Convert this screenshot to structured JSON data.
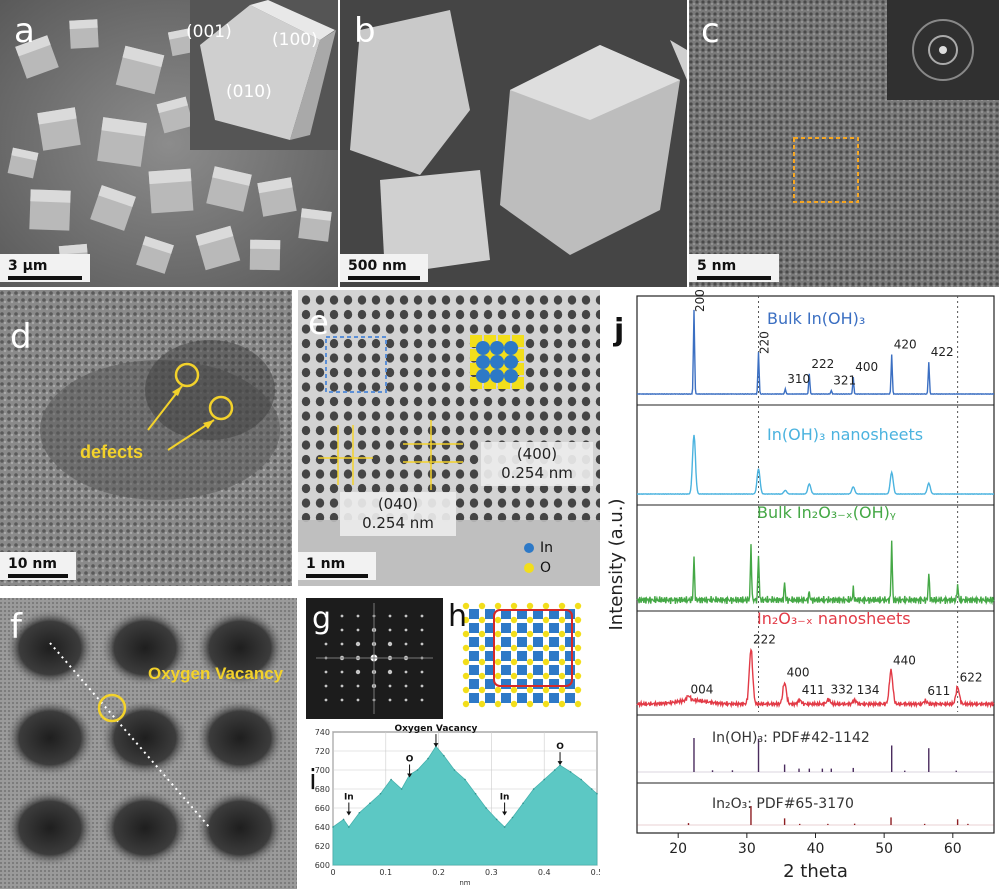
{
  "panels": {
    "a": {
      "label": "a",
      "scale": "3 μm",
      "facets": [
        "(001)",
        "(100)",
        "(010)"
      ]
    },
    "b": {
      "label": "b",
      "scale": "500 nm"
    },
    "c": {
      "label": "c",
      "scale": "5 nm"
    },
    "d": {
      "label": "d",
      "scale": "10 nm",
      "annotation": "defects"
    },
    "e": {
      "label": "e",
      "scale": "1 nm",
      "spacing_040": {
        "plane": "(040)",
        "d": "0.254 nm"
      },
      "spacing_400": {
        "plane": "(400)",
        "d": "0.254 nm"
      },
      "legend": [
        {
          "name": "In",
          "color": "#2d79c7"
        },
        {
          "name": "O",
          "color": "#f2de1b"
        }
      ]
    },
    "f": {
      "label": "f",
      "annotation": "Oxygen Vacancy"
    },
    "g": {
      "label": "g"
    },
    "h": {
      "label": "h"
    },
    "i": {
      "label": "i",
      "xlabel": "nm",
      "yticks": [
        600,
        620,
        640,
        660,
        680,
        700,
        720,
        740
      ],
      "xticks": [
        0,
        0.1,
        0.2,
        0.3,
        0.4,
        0.5
      ],
      "annotations": [
        {
          "text": "In",
          "x": 0.03,
          "y": 650
        },
        {
          "text": "O",
          "x": 0.145,
          "y": 690
        },
        {
          "text": "Oxygen Vacancy",
          "x": 0.195,
          "y": 722
        },
        {
          "text": "In",
          "x": 0.325,
          "y": 650
        },
        {
          "text": "O",
          "x": 0.43,
          "y": 703
        }
      ]
    },
    "j": {
      "label": "j",
      "ylabel": "Intensity (a.u.)",
      "xlabel": "2 theta",
      "xticks": [
        20,
        30,
        40,
        50,
        60
      ]
    }
  },
  "chart_data": [
    {
      "type": "area",
      "panel": "i",
      "xlabel": "nm",
      "ylim": [
        600,
        740
      ],
      "xlim": [
        0,
        0.5
      ],
      "color": "#5cc8c4",
      "x": [
        0.0,
        0.02,
        0.03,
        0.05,
        0.07,
        0.09,
        0.11,
        0.13,
        0.145,
        0.16,
        0.18,
        0.195,
        0.21,
        0.23,
        0.25,
        0.27,
        0.29,
        0.31,
        0.325,
        0.34,
        0.36,
        0.38,
        0.4,
        0.42,
        0.43,
        0.45,
        0.47,
        0.49,
        0.5
      ],
      "values": [
        640,
        648,
        640,
        655,
        665,
        675,
        690,
        680,
        695,
        700,
        712,
        725,
        715,
        700,
        690,
        675,
        660,
        648,
        640,
        650,
        665,
        680,
        690,
        700,
        705,
        698,
        690,
        680,
        675
      ]
    },
    {
      "type": "line",
      "panel": "j",
      "xlabel": "2 theta",
      "ylabel": "Intensity (a.u.)",
      "xlim": [
        14,
        66
      ],
      "xticks": [
        20,
        30,
        40,
        50,
        60
      ],
      "series": [
        {
          "name": "Bulk In(OH)₃",
          "color": "#3b6fc2",
          "peaks": [
            {
              "pos": 22.3,
              "height": 1.0,
              "label": "200"
            },
            {
              "pos": 31.7,
              "height": 0.5,
              "label": "220"
            },
            {
              "pos": 35.6,
              "height": 0.06,
              "label": "310"
            },
            {
              "pos": 39.1,
              "height": 0.24,
              "label": "222"
            },
            {
              "pos": 42.3,
              "height": 0.04,
              "label": "321"
            },
            {
              "pos": 45.5,
              "height": 0.2,
              "label": "400"
            },
            {
              "pos": 51.1,
              "height": 0.47,
              "label": "420"
            },
            {
              "pos": 56.5,
              "height": 0.38,
              "label": "422"
            }
          ]
        },
        {
          "name": "In(OH)₃ nanosheets",
          "color": "#4bb3df",
          "peaks": [
            {
              "pos": 22.3,
              "height": 0.82
            },
            {
              "pos": 31.7,
              "height": 0.35
            },
            {
              "pos": 35.6,
              "height": 0.05
            },
            {
              "pos": 39.1,
              "height": 0.14
            },
            {
              "pos": 45.5,
              "height": 0.1
            },
            {
              "pos": 51.1,
              "height": 0.3
            },
            {
              "pos": 56.5,
              "height": 0.15
            }
          ]
        },
        {
          "name": "Bulk In₂O₃₋ₓ(OH)ᵧ",
          "color": "#45a846",
          "peaks": [
            {
              "pos": 22.3,
              "height": 0.55
            },
            {
              "pos": 30.6,
              "height": 0.7
            },
            {
              "pos": 31.7,
              "height": 0.6
            },
            {
              "pos": 35.5,
              "height": 0.22
            },
            {
              "pos": 39.1,
              "height": 0.1
            },
            {
              "pos": 45.5,
              "height": 0.14
            },
            {
              "pos": 51.1,
              "height": 0.75
            },
            {
              "pos": 56.5,
              "height": 0.35
            },
            {
              "pos": 60.7,
              "height": 0.2
            }
          ]
        },
        {
          "name": "In₂O₃₋ₓ nanosheets",
          "color": "#e23a46",
          "peaks": [
            {
              "pos": 21.5,
              "height": 0.06,
              "label": "004"
            },
            {
              "pos": 30.6,
              "height": 0.72,
              "label": "222"
            },
            {
              "pos": 35.5,
              "height": 0.28,
              "label": "400"
            },
            {
              "pos": 37.7,
              "height": 0.05,
              "label": "411"
            },
            {
              "pos": 41.9,
              "height": 0.06,
              "label": "332"
            },
            {
              "pos": 45.7,
              "height": 0.05,
              "label": "134"
            },
            {
              "pos": 51.0,
              "height": 0.44,
              "label": "440"
            },
            {
              "pos": 56.0,
              "height": 0.04,
              "label": "611"
            },
            {
              "pos": 60.7,
              "height": 0.22,
              "label": "622"
            }
          ]
        },
        {
          "name": "In(OH)₃: PDF#42-1142",
          "color": "#4a2c5e",
          "sticks": [
            {
              "pos": 22.3,
              "height": 1.0
            },
            {
              "pos": 25.0,
              "height": 0.05
            },
            {
              "pos": 27.9,
              "height": 0.05
            },
            {
              "pos": 31.7,
              "height": 0.98
            },
            {
              "pos": 35.5,
              "height": 0.22
            },
            {
              "pos": 37.6,
              "height": 0.1
            },
            {
              "pos": 39.1,
              "height": 0.1
            },
            {
              "pos": 41.0,
              "height": 0.1
            },
            {
              "pos": 42.3,
              "height": 0.1
            },
            {
              "pos": 45.5,
              "height": 0.12
            },
            {
              "pos": 51.1,
              "height": 0.78
            },
            {
              "pos": 53.0,
              "height": 0.04
            },
            {
              "pos": 56.5,
              "height": 0.7
            },
            {
              "pos": 60.5,
              "height": 0.04
            }
          ]
        },
        {
          "name": "In₂O₃: PDF#65-3170",
          "color": "#8e1f23",
          "sticks": [
            {
              "pos": 21.5,
              "height": 0.1
            },
            {
              "pos": 30.6,
              "height": 1.0
            },
            {
              "pos": 35.5,
              "height": 0.35
            },
            {
              "pos": 37.7,
              "height": 0.06
            },
            {
              "pos": 41.8,
              "height": 0.06
            },
            {
              "pos": 45.7,
              "height": 0.07
            },
            {
              "pos": 51.0,
              "height": 0.4
            },
            {
              "pos": 55.9,
              "height": 0.06
            },
            {
              "pos": 60.7,
              "height": 0.3
            },
            {
              "pos": 62.2,
              "height": 0.06
            }
          ]
        }
      ],
      "guide_lines": [
        31.7,
        60.7
      ]
    }
  ]
}
